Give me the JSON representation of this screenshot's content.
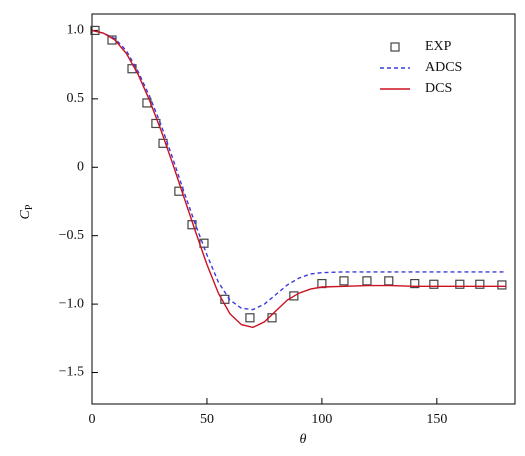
{
  "chart_data": {
    "type": "line",
    "x_label": "θ",
    "y_label": "C",
    "y_label_sub": "P",
    "xlim": [
      0,
      184
    ],
    "ylim": [
      -1.73,
      1.12
    ],
    "xticks": [
      0,
      50,
      100,
      150
    ],
    "yticks": [
      {
        "value": 1.0,
        "label": "1.0"
      },
      0.5,
      0,
      {
        "value": -0.5,
        "label": "−0.5"
      },
      {
        "value": -1.0,
        "label": "−1.0"
      },
      {
        "value": -1.5,
        "label": "−1.5"
      }
    ],
    "legend": "upper right",
    "series": [
      {
        "name": "EXP",
        "type": "scatter",
        "color": "#444444",
        "x": [
          1.3,
          8.7,
          17.4,
          23.9,
          27.8,
          30.9,
          37.8,
          43.5,
          48.7,
          57.8,
          68.7,
          78.3,
          87.8,
          100,
          109.6,
          119.6,
          129.1,
          140.4,
          148.7,
          160,
          168.7,
          178.3
        ],
        "values": [
          1.0,
          0.93,
          0.72,
          0.47,
          0.32,
          0.175,
          -0.175,
          -0.42,
          -0.555,
          -0.965,
          -1.1,
          -1.1,
          -0.94,
          -0.85,
          -0.83,
          -0.83,
          -0.83,
          -0.85,
          -0.855,
          -0.855,
          -0.855,
          -0.86
        ]
      },
      {
        "name": "ADCS",
        "type": "line",
        "color": "#3b3bdc",
        "dashed": true,
        "x": [
          0,
          5,
          10,
          15,
          20,
          25,
          30,
          35,
          40,
          45,
          50,
          55,
          60,
          65,
          70,
          75,
          80,
          85,
          90,
          95,
          100,
          110,
          120,
          130,
          140,
          150,
          160,
          170,
          180
        ],
        "values": [
          1.0,
          0.98,
          0.94,
          0.85,
          0.7,
          0.52,
          0.31,
          0.07,
          -0.18,
          -0.42,
          -0.64,
          -0.84,
          -0.97,
          -1.03,
          -1.04,
          -1.0,
          -0.93,
          -0.86,
          -0.81,
          -0.78,
          -0.77,
          -0.765,
          -0.765,
          -0.765,
          -0.765,
          -0.765,
          -0.765,
          -0.765,
          -0.765
        ]
      },
      {
        "name": "DCS",
        "type": "line",
        "color": "#cc1122",
        "dashed": false,
        "x": [
          0,
          5,
          10,
          15,
          20,
          25,
          30,
          35,
          40,
          45,
          50,
          55,
          60,
          65,
          70,
          75,
          80,
          85,
          90,
          95,
          100,
          110,
          120,
          130,
          140,
          150,
          160,
          170,
          180
        ],
        "values": [
          1.0,
          0.98,
          0.93,
          0.83,
          0.68,
          0.49,
          0.27,
          0.03,
          -0.22,
          -0.47,
          -0.71,
          -0.92,
          -1.07,
          -1.15,
          -1.17,
          -1.13,
          -1.05,
          -0.97,
          -0.92,
          -0.89,
          -0.875,
          -0.87,
          -0.865,
          -0.865,
          -0.87,
          -0.87,
          -0.87,
          -0.87,
          -0.87
        ]
      }
    ]
  }
}
